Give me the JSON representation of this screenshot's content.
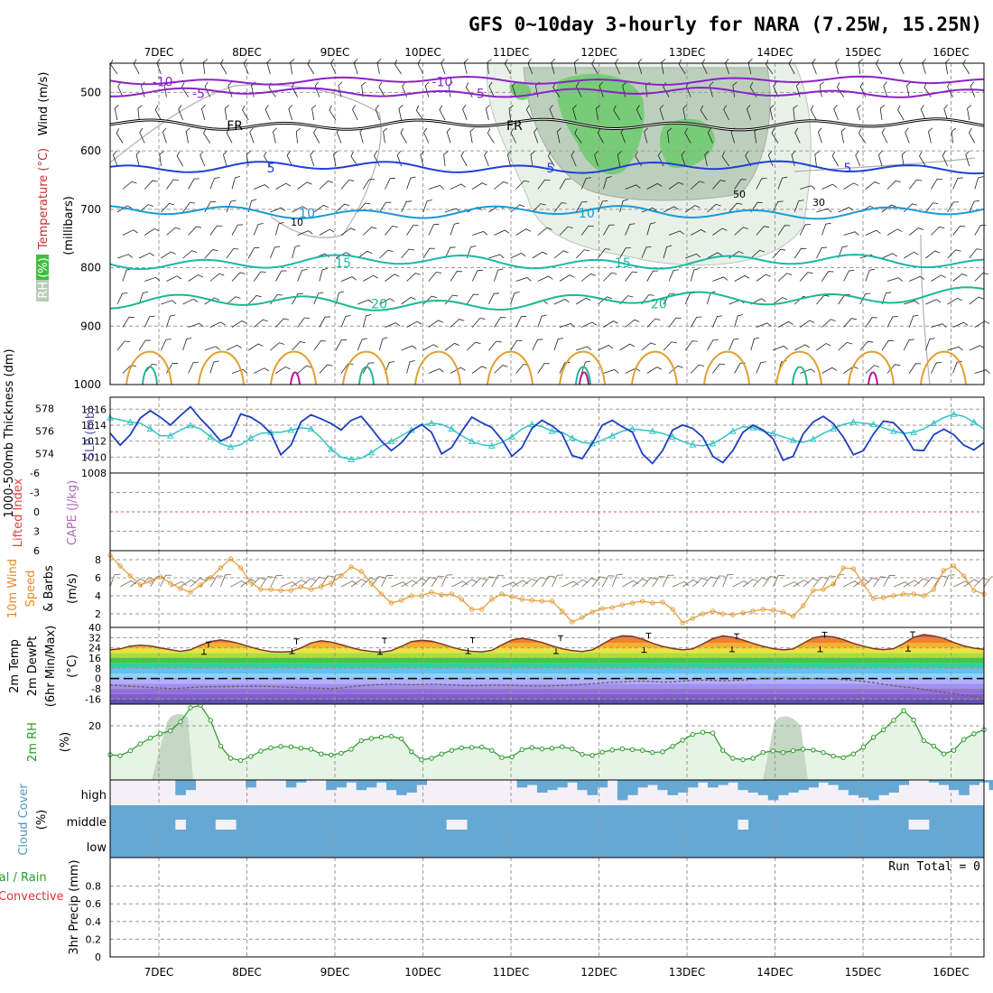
{
  "title": "GFS 0~10day 3-hourly for NARA (7.25W, 15.25N)",
  "dates": [
    "7DEC",
    "8DEC",
    "9DEC",
    "10DEC",
    "11DEC",
    "12DEC",
    "13DEC",
    "14DEC",
    "15DEC",
    "16DEC"
  ],
  "colors": {
    "grid": "#9a9a9a",
    "barb": "#222222",
    "slp": "#1f3fbf",
    "thick": "#2fc4c4",
    "wind": "#e3a040",
    "speedbarb": "#7a6a55",
    "rh": "#2a9a2a",
    "rhfill": "#e6f4e6",
    "cloud": "#66a8d4",
    "cloudbg": "#f4f0f8"
  },
  "chart_data": [
    {
      "type": "contour",
      "name": "upper-air",
      "ylabel_parts": {
        "wind": "Wind (m/s)",
        "temp": "Temperature (°C)",
        "rh": "RH (%)",
        "mb": "(millibars)"
      },
      "y_ticks": [
        500,
        600,
        700,
        800,
        900,
        1000
      ],
      "isotherms": [
        {
          "label": "-10",
          "level": 480,
          "color": "#8a22c8",
          "labels": [
            "-10",
            "-10"
          ]
        },
        {
          "label": "-5",
          "level": 500,
          "color": "#8a22c8",
          "labels": [
            "-5",
            "-5"
          ]
        },
        {
          "label": "FR",
          "level": 555,
          "color": "#000000",
          "labels": [
            "FR",
            "FR"
          ]
        },
        {
          "label": "5",
          "level": 628,
          "color": "#2040d8",
          "labels": [
            "5",
            "5",
            "5"
          ]
        },
        {
          "label": "10",
          "level": 705,
          "color": "#1a9ad8",
          "labels": [
            "10",
            "10"
          ]
        },
        {
          "label": "15",
          "level": 790,
          "color": "#1ab8a8",
          "labels": [
            "15",
            "15"
          ]
        },
        {
          "label": "20",
          "level": 860,
          "color": "#1ab890",
          "labels": [
            "20",
            "20"
          ]
        }
      ],
      "rh_labels": [
        "10",
        "30",
        "50"
      ]
    },
    {
      "type": "line",
      "name": "thickness-slp",
      "ylabel_left": "1000-500mb Thickness (dm)",
      "ylabel_right": "SLP (mb)",
      "left_ticks": [
        "578",
        "576",
        "574"
      ],
      "right_ticks": [
        "1016",
        "1014",
        "1012",
        "1010",
        "1008"
      ],
      "slp": [
        1013,
        1011.5,
        1012.8,
        1014.9,
        1015.8,
        1015,
        1014,
        1015.2,
        1016.3,
        1014.8,
        1013.5,
        1012,
        1012.6,
        1015.4,
        1015,
        1014.2,
        1013,
        1010.3,
        1011.5,
        1014.4,
        1015.3,
        1014.8,
        1014.2,
        1013.4,
        1014.6,
        1015.1,
        1013.6,
        1012,
        1010.8,
        1011.8,
        1013.3,
        1014.1,
        1013.1,
        1010.4,
        1011.2,
        1013.2,
        1015,
        1014.3,
        1013.7,
        1012.2,
        1010.1,
        1011.2,
        1013.6,
        1014.6,
        1013.9,
        1012.9,
        1010.2,
        1009.8,
        1011.7,
        1014,
        1014.6,
        1013.8,
        1013.1,
        1010.4,
        1009.2,
        1010.8,
        1013.4,
        1014,
        1013.6,
        1012.5,
        1010.1,
        1009.3,
        1010.8,
        1013.1,
        1014,
        1013.4,
        1012.3,
        1009.6,
        1010.1,
        1012.9,
        1014.4,
        1015.1,
        1014.2,
        1012.5,
        1010.3,
        1010.8,
        1012.9,
        1014.5,
        1014.3,
        1013,
        1010.9,
        1010.8,
        1012.8,
        1013.5,
        1012.8,
        1011.5,
        1010.9,
        1011.8
      ],
      "thickness": [
        577.2,
        577,
        576.8,
        576.7,
        576.2,
        575.6,
        575.6,
        576.1,
        576.5,
        576.2,
        575.5,
        574.9,
        574.6,
        574.8,
        575.4,
        575.8,
        575.9,
        575.9,
        576.1,
        576.3,
        576.2,
        575.4,
        574.4,
        573.7,
        573.5,
        573.6,
        574.1,
        574.7,
        575.1,
        575.6,
        576.1,
        576.5,
        576.7,
        576.6,
        576.2,
        575.6,
        575.1,
        574.8,
        574.7,
        575,
        575.5,
        576.2,
        576.6,
        576.4,
        576,
        575.9,
        575.4,
        575,
        574.9,
        575.2,
        575.6,
        576,
        576.2,
        576.1,
        576,
        575.8,
        575.5,
        575.1,
        574.8,
        574.7,
        574.9,
        575.4,
        576,
        576.4,
        576.3,
        576,
        575.8,
        575.5,
        575.2,
        575,
        575.3,
        575.8,
        576.2,
        576.6,
        576.8,
        576.7,
        576.6,
        576.3,
        576,
        575.8,
        575.9,
        576.2,
        576.7,
        577.2,
        577.5,
        577.3,
        576.8,
        576.2
      ]
    },
    {
      "type": "line",
      "name": "cape-li",
      "ylabel_left": "Lifted Index",
      "ylabel_right": "CAPE (J/kg)",
      "li_ticks": [
        "-6",
        "-3",
        "0",
        "3",
        "6"
      ],
      "li": []
    },
    {
      "type": "line",
      "name": "wind10m",
      "ylabel": "10m Wind Speed & Barbs (m/s)",
      "y_ticks": [
        "8",
        "6",
        "4",
        "2"
      ],
      "ylim": [
        0.5,
        9
      ],
      "values": [
        8.5,
        7.3,
        6.2,
        5.2,
        5.6,
        6.1,
        5.4,
        4.8,
        4.4,
        5.2,
        6,
        7.1,
        8.1,
        7.1,
        5.5,
        4.7,
        4.7,
        4.6,
        4.6,
        5,
        4.7,
        5,
        5.4,
        6.2,
        7.2,
        6.7,
        5.4,
        4.2,
        3.2,
        3.5,
        4,
        4,
        4.4,
        4.1,
        4.2,
        3.6,
        2.5,
        2.5,
        3.6,
        4.2,
        3.9,
        3.6,
        3.5,
        3.4,
        3.4,
        2.3,
        1.1,
        1.6,
        2.2,
        2.6,
        2.7,
        3,
        3.2,
        3.4,
        3.2,
        3.3,
        2.5,
        1,
        1.5,
        2,
        2.3,
        2,
        1.9,
        2.1,
        2.3,
        2.5,
        2.4,
        2.2,
        1.7,
        2.9,
        4.6,
        4.7,
        5.3,
        7.1,
        7,
        5.3,
        3.7,
        3.8,
        4,
        4.2,
        4.2,
        4,
        4.7,
        6.8,
        7.3,
        6.2,
        4.6,
        4.2
      ]
    },
    {
      "type": "area",
      "name": "temperature",
      "ylabel": "2m Temp 2m DewPt (6hr Min/Max) (°C)",
      "y_ticks": [
        "40",
        "32",
        "24",
        "16",
        "8",
        "0",
        "-8",
        "-16"
      ],
      "ylim": [
        -20,
        40
      ],
      "temp": [
        22.5,
        23.2,
        25.3,
        26.1,
        25.5,
        24,
        22.6,
        21.2,
        22.5,
        26,
        29,
        30.2,
        29,
        27.1,
        24.6,
        22.5,
        21,
        20.7,
        21,
        24,
        27.8,
        29.6,
        28.5,
        26.5,
        24.2,
        22.3,
        21.2,
        20.6,
        21.8,
        25.2,
        28.9,
        30,
        29.2,
        27.1,
        24.6,
        22.5,
        21.3,
        20.9,
        22.1,
        26.3,
        30.1,
        31.5,
        30.2,
        28.2,
        25.5,
        23.3,
        21.9,
        21.1,
        22.4,
        26.8,
        31.2,
        33.5,
        33,
        30.8,
        27.6,
        25.2,
        23.5,
        22.4,
        23.2,
        27.1,
        31.2,
        33.4,
        32.3,
        30.1,
        27.5,
        25.2,
        23.4,
        22.4,
        23.1,
        27.6,
        31.8,
        33.2,
        32.6,
        30.5,
        27.5,
        25.3,
        23.4,
        22.6,
        23.4,
        27.4,
        32.2,
        34.4,
        33.3,
        31.4,
        28.2,
        25.5,
        23.8,
        22.9
      ],
      "dewpt": [
        -5,
        -5.5,
        -6,
        -6.4,
        -7,
        -7.4,
        -7.8,
        -7.6,
        -7,
        -6.6,
        -6.4,
        -6.3,
        -6.2,
        -6.1,
        -6,
        -6,
        -6.2,
        -6.5,
        -6.8,
        -7.2,
        -7.4,
        -7.6,
        -7.8,
        -7.4,
        -6.4,
        -5.6,
        -5,
        -4.6,
        -4.4,
        -4.6,
        -4.8,
        -4.6,
        -4.4,
        -4.6,
        -5,
        -5.4,
        -5.6,
        -5.4,
        -5.2,
        -5.2,
        -5.4,
        -5.6,
        -5.8,
        -5.8,
        -5.6,
        -5.4,
        -5.2,
        -4.6,
        -4,
        -3.4,
        -3,
        -2.6,
        -2.2,
        -2,
        -2.4,
        -2.8,
        -2.6,
        -2,
        -1.4,
        -1.2,
        -1.4,
        -1.8,
        -1.6,
        -1.2,
        -0.6,
        0,
        0.2,
        0.2,
        0.1,
        0,
        -0.1,
        -0.2,
        -0.4,
        -0.8,
        -1.4,
        -2.2,
        -3.2,
        -4.4,
        -5.6,
        -6.6,
        -7.4,
        -8.4,
        -9.6,
        -10.8,
        -12,
        -13,
        -14,
        -14.6
      ],
      "max_marks": [
        28.5,
        31,
        31.5,
        32,
        33.5,
        35.5,
        35,
        36.2,
        36.5,
        36
      ],
      "min_marks": [
        19,
        19.5,
        19,
        19.5,
        19.5,
        20.5,
        21,
        21,
        21.5,
        21.8
      ]
    },
    {
      "type": "area",
      "name": "relative-humidity",
      "ylabel": "2m RH (%)",
      "y_ticks": [
        "20"
      ],
      "ylim": [
        5,
        26
      ],
      "values": [
        12,
        11.7,
        13.1,
        15,
        16.6,
        17.8,
        18.6,
        21.1,
        25,
        25.7,
        21.5,
        14.4,
        11,
        10.4,
        11.5,
        13,
        13.9,
        14.3,
        14.2,
        13.8,
        13.5,
        12.2,
        11.9,
        12.4,
        13.5,
        15.9,
        16.5,
        16.9,
        17.1,
        16.4,
        12.8,
        10.6,
        11,
        12.2,
        13.2,
        13.9,
        14,
        14.1,
        13.2,
        11.2,
        11.4,
        13.4,
        14,
        13.6,
        13.8,
        14.2,
        13.6,
        12.1,
        11.8,
        12.7,
        13.3,
        13.6,
        13.4,
        13.2,
        12.6,
        12.8,
        14.3,
        16,
        17.6,
        18.2,
        18,
        13.2,
        11,
        10.6,
        11,
        12.6,
        13,
        12.6,
        13.1,
        13.5,
        13.3,
        12.6,
        11.6,
        11.2,
        12.2,
        14.1,
        16.8,
        18.9,
        21.5,
        24.2,
        21.6,
        15.9,
        14.4,
        12.2,
        13.2,
        16.2,
        17.8,
        18.9
      ]
    },
    {
      "type": "heatmap",
      "name": "cloud-cover",
      "ylabel": "Cloud Cover (%)",
      "rows": [
        "high",
        "middle",
        "low"
      ],
      "high": [
        0,
        0,
        0,
        0,
        0,
        0,
        0,
        0.6,
        0.4,
        0,
        0,
        0,
        0,
        0,
        0.3,
        0,
        0,
        0,
        0.3,
        0.1,
        0,
        0,
        0.4,
        0.3,
        0.1,
        0.4,
        0.3,
        0.1,
        0.4,
        0.6,
        0.5,
        0.2,
        0,
        0,
        0,
        0,
        0,
        0,
        0,
        0,
        0,
        0.3,
        0.2,
        0.5,
        0.4,
        0.3,
        0.1,
        0.4,
        0.6,
        0.3,
        0,
        0.8,
        0.6,
        0.3,
        0.2,
        0.4,
        0.6,
        0.5,
        0.3,
        0.1,
        0.3,
        0.2,
        0.1,
        0.4,
        0.5,
        0.6,
        0.8,
        0.6,
        0.5,
        0.4,
        0.3,
        0.1,
        0.2,
        0.4,
        0.6,
        0.7,
        0.8,
        0.6,
        0.5,
        0.2,
        0,
        0,
        0.1,
        0.2,
        0.4,
        0.6,
        0.2,
        0.1,
        0.4,
        0.6
      ],
      "middle_gaps": [
        7,
        11,
        12,
        34,
        35,
        63,
        80,
        81
      ]
    },
    {
      "type": "bar",
      "name": "precipitation",
      "ylabel": "3hr Precip (mm)",
      "legend_left": [
        "Total / Rain",
        "Convective"
      ],
      "run_total": "Run Total = 0",
      "y_ticks": [
        "0.8",
        "0.6",
        "0.4",
        "0.2",
        "0"
      ],
      "ylim": [
        0,
        1
      ],
      "values": []
    }
  ]
}
